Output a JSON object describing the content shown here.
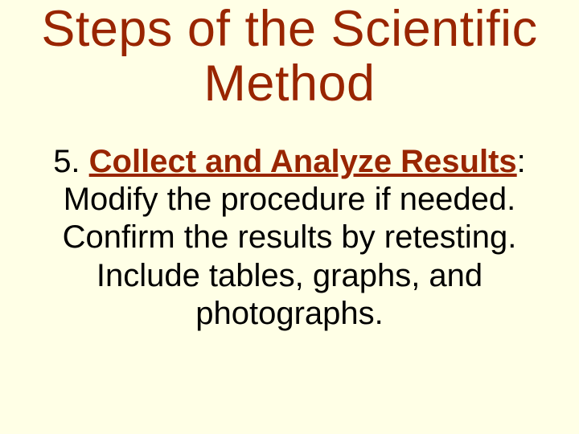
{
  "slide": {
    "background_color": "#ffffe6",
    "title": {
      "text": "Steps of the Scientific Method",
      "color": "#992500",
      "font_size_pt": 48
    },
    "body": {
      "step_number": "5. ",
      "step_label": "Collect and Analyze Results",
      "step_colon": ":",
      "step_label_color": "#992500",
      "step_label_bold": true,
      "step_label_underline": true,
      "lines_rest": " Modify the procedure if needed. Confirm the results by retesting. Include tables, graphs, and photographs.",
      "text_color": "#000000",
      "font_size_pt": 30
    }
  }
}
